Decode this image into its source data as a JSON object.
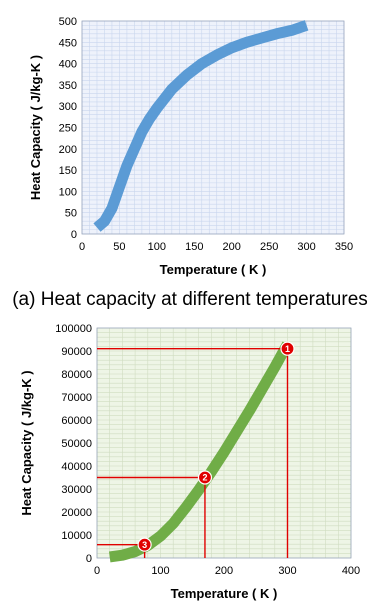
{
  "chart_data": [
    {
      "type": "line",
      "caption": "(a) Heat capacity at different temperatures",
      "xlabel": "Temperature ( K )",
      "ylabel": "Heat Capacity ( J/kg-K )",
      "xlim": [
        0,
        350
      ],
      "ylim": [
        0,
        500
      ],
      "xticks": [
        0,
        50,
        100,
        150,
        200,
        250,
        300,
        350
      ],
      "yticks": [
        0,
        50,
        100,
        150,
        200,
        250,
        300,
        350,
        400,
        450,
        500
      ],
      "grid": true,
      "plot_background": "#eef2fb",
      "grid_color": "#c9d6ee",
      "series": [
        {
          "color": "#5b9bd5",
          "x": [
            20,
            30,
            40,
            50,
            60,
            70,
            80,
            90,
            100,
            120,
            140,
            160,
            180,
            200,
            220,
            240,
            260,
            280,
            300
          ],
          "y": [
            15,
            30,
            60,
            110,
            160,
            200,
            240,
            270,
            295,
            340,
            373,
            400,
            420,
            437,
            450,
            460,
            470,
            478,
            490
          ]
        }
      ]
    },
    {
      "type": "line",
      "xlabel": "Temperature ( K )",
      "ylabel": "Heat Capacity ( J/kg-K )",
      "xlim": [
        0,
        400
      ],
      "ylim": [
        0,
        100000
      ],
      "xticks": [
        0,
        100,
        200,
        300,
        400
      ],
      "yticks": [
        0,
        10000,
        20000,
        30000,
        40000,
        50000,
        60000,
        70000,
        80000,
        90000,
        100000
      ],
      "grid": true,
      "plot_background": "#eef5e6",
      "grid_color": "#cfdcc0",
      "series": [
        {
          "color": "#70ad47",
          "x": [
            20,
            40,
            60,
            80,
            100,
            120,
            140,
            160,
            180,
            200,
            220,
            240,
            260,
            280,
            300
          ],
          "y": [
            500,
            1200,
            2800,
            5500,
            9500,
            15000,
            22000,
            29500,
            37500,
            46000,
            55000,
            64000,
            73500,
            83000,
            93000
          ]
        }
      ],
      "annotations": [
        {
          "label": "1",
          "x": 300,
          "y": 91000
        },
        {
          "label": "2",
          "x": 170,
          "y": 35000
        },
        {
          "label": "3",
          "x": 75,
          "y": 5800
        }
      ],
      "annotation_color": "#e00000"
    }
  ]
}
